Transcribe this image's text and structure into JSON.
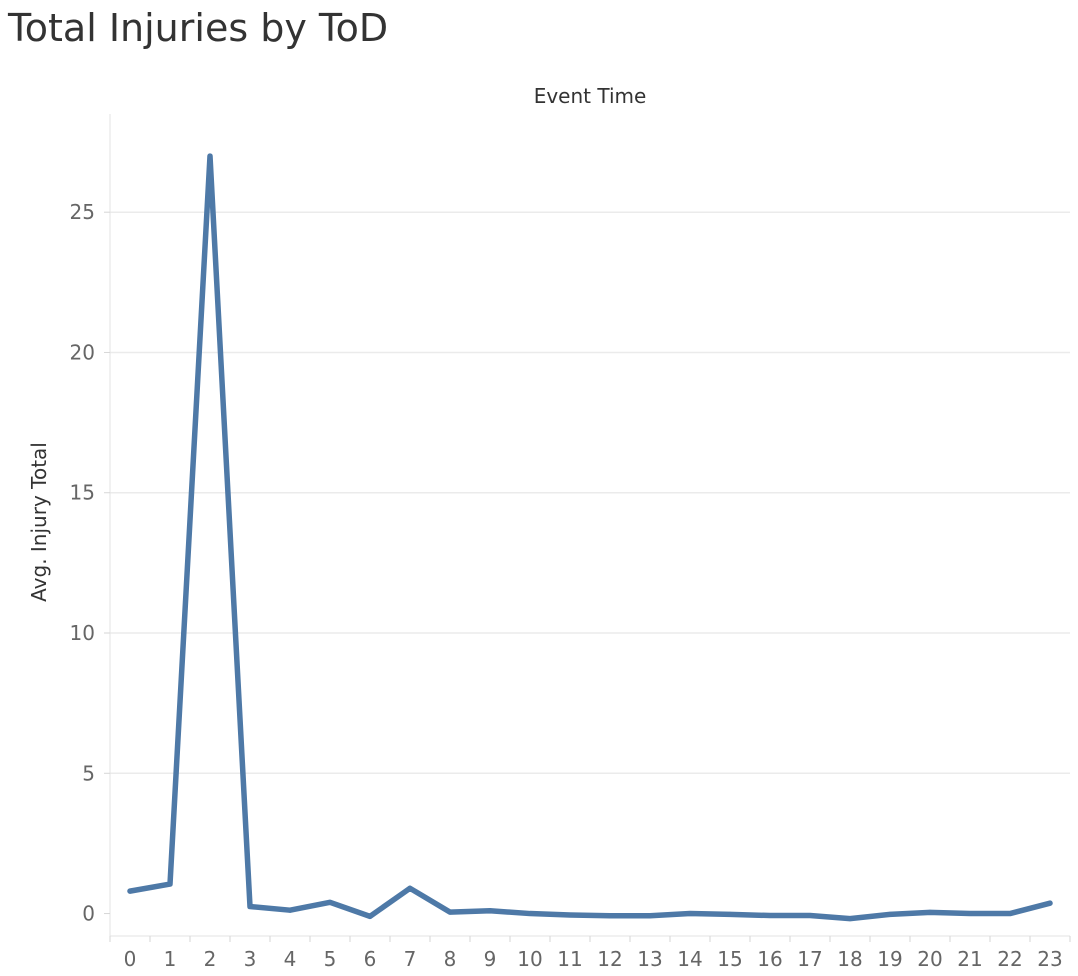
{
  "chart_data": {
    "type": "line",
    "title": "Total Injuries by ToD",
    "xlabel": "Event Time",
    "ylabel": "Avg. Injury Total",
    "x": [
      "0",
      "1",
      "2",
      "3",
      "4",
      "5",
      "6",
      "7",
      "8",
      "9",
      "10",
      "11",
      "12",
      "13",
      "14",
      "15",
      "16",
      "17",
      "18",
      "19",
      "20",
      "21",
      "22",
      "23"
    ],
    "series": [
      {
        "values": [
          0.8,
          1.05,
          27.0,
          0.25,
          0.12,
          0.4,
          -0.1,
          0.9,
          0.05,
          0.1,
          0.0,
          -0.05,
          -0.08,
          -0.08,
          0.0,
          -0.03,
          -0.07,
          -0.07,
          -0.18,
          -0.03,
          0.04,
          0.0,
          0.0,
          0.37
        ]
      }
    ],
    "y_ticks": [
      0,
      5,
      10,
      15,
      20,
      25
    ],
    "ylim": [
      -0.8,
      28.5
    ],
    "grid": true,
    "line_color": "#4e79a7"
  }
}
